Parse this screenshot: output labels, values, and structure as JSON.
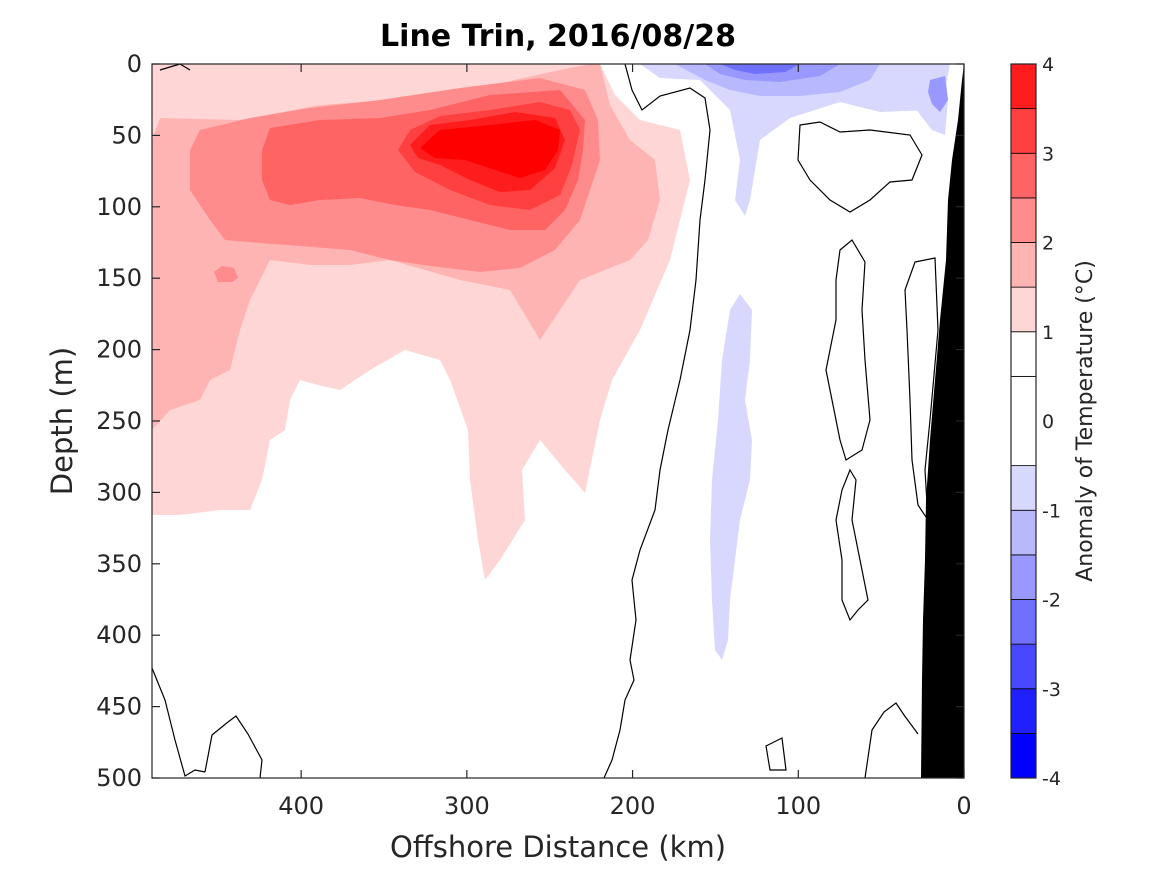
{
  "chart_data": {
    "type": "contour",
    "title": "Line Trin, 2016/08/28",
    "xlabel": "Offshore Distance (km)",
    "ylabel": "Depth (m)",
    "xlim": [
      490,
      0
    ],
    "ylim": [
      0,
      500
    ],
    "x_reversed": true,
    "y_reversed": true,
    "xticks": [
      400,
      300,
      200,
      100,
      0
    ],
    "yticks": [
      0,
      50,
      100,
      150,
      200,
      250,
      300,
      350,
      400,
      450,
      500
    ],
    "colorbar": {
      "label": "Anomaly of Temperature (°C)",
      "ticks": [
        4,
        3,
        2,
        1,
        0,
        -1,
        -2,
        -3,
        -4
      ],
      "levels": [
        -4,
        -3.5,
        -3,
        -2.5,
        -2,
        -1.5,
        -1,
        -0.5,
        0.5,
        1,
        1.5,
        2,
        2.5,
        3,
        3.5,
        4
      ],
      "colors": [
        "#0000ff",
        "#2020ff",
        "#4848ff",
        "#7070ff",
        "#9898ff",
        "#b8b8ff",
        "#d8d8ff",
        "#ffffff",
        "#ffffff",
        "#ffd6d6",
        "#ffb4b4",
        "#ff8c8c",
        "#ff6464",
        "#ff4040",
        "#ff1c1c",
        "#ff0000"
      ]
    },
    "warm_core": {
      "max_anomaly": 3.5,
      "center_km": 265,
      "center_depth_m": 60
    },
    "cold_features": [
      {
        "center_km": 120,
        "depth_m": 5,
        "min_anomaly": -2.5
      },
      {
        "center_km": 15,
        "depth_m": 20,
        "min_anomaly": -2
      },
      {
        "center_km": 135,
        "depth_m": 300,
        "min_anomaly": -0.5
      }
    ],
    "shelf_colour": "#000000"
  }
}
